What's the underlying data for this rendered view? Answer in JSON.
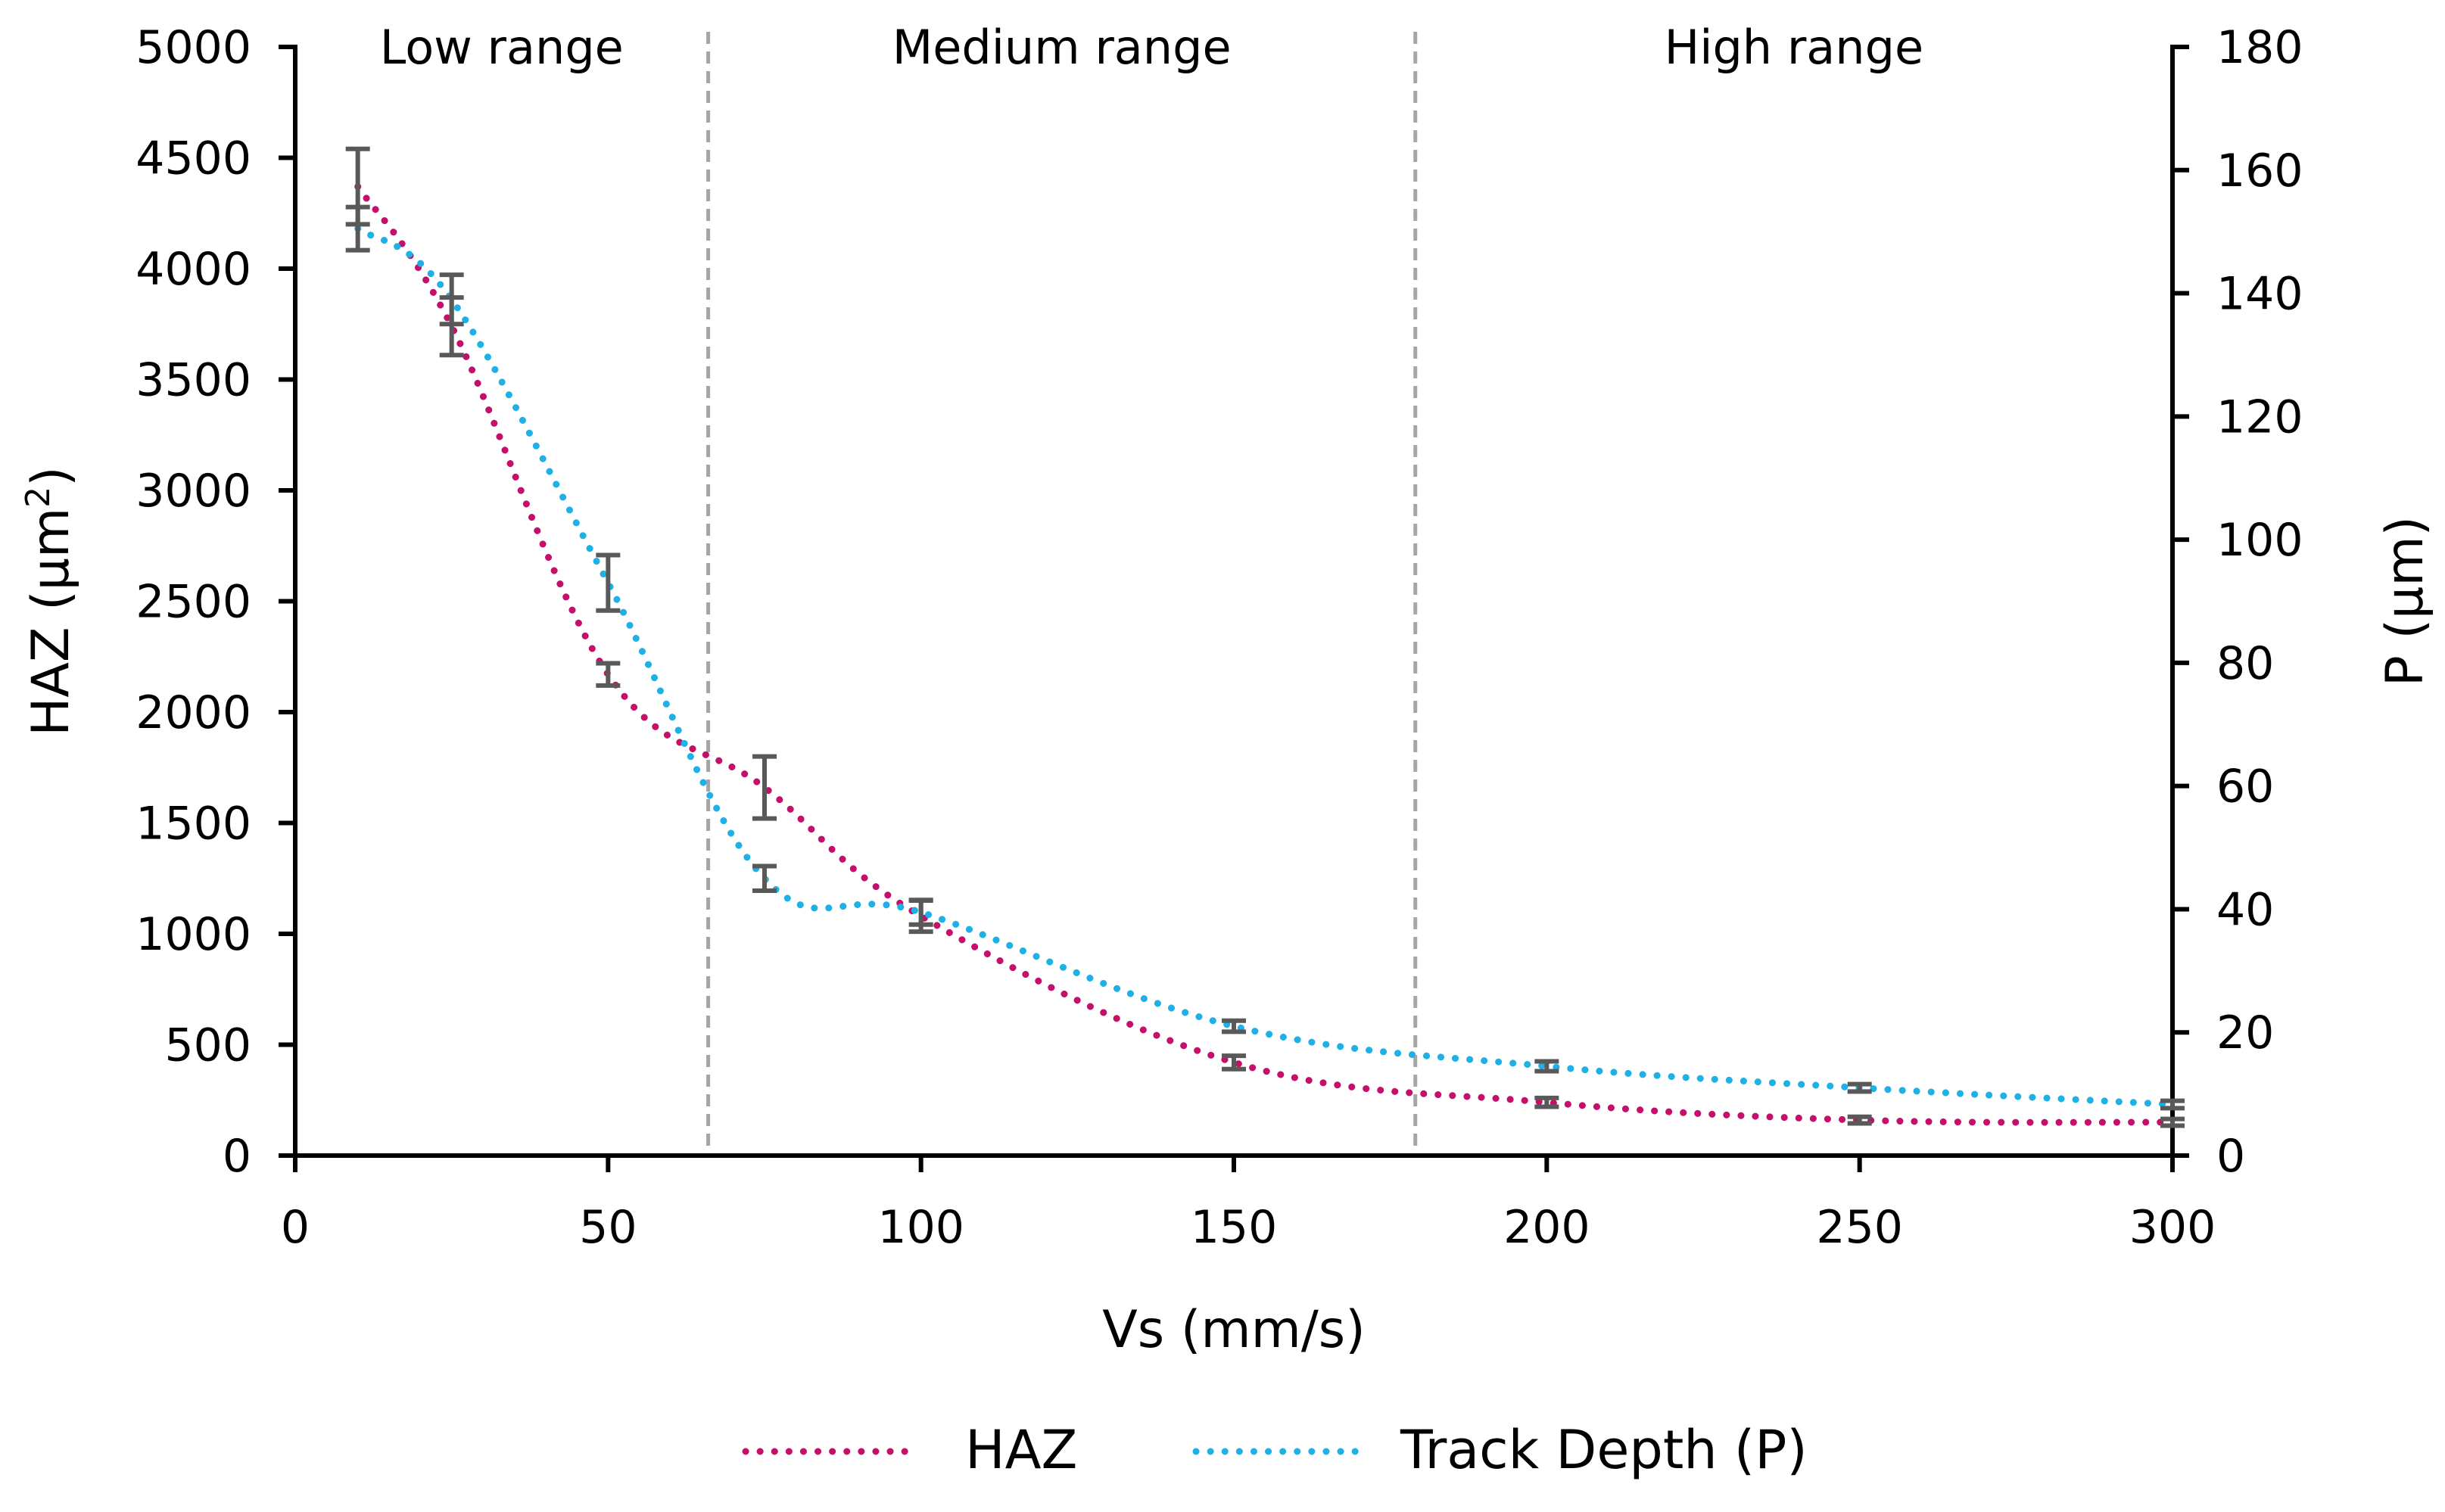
{
  "chart_data": {
    "type": "line",
    "xlabel": "Vs (mm/s)",
    "ylabel_left": "HAZ (µm",
    "ylabel_left_sup": "2",
    "ylabel_left_close": ")",
    "ylabel_right": "P (µm)",
    "xlim": [
      0,
      300
    ],
    "ylim_left": [
      0,
      5000
    ],
    "ylim_right": [
      0,
      180
    ],
    "x_ticks": [
      0,
      50,
      100,
      150,
      200,
      250,
      300
    ],
    "y_left_ticks": [
      0,
      500,
      1000,
      1500,
      2000,
      2500,
      3000,
      3500,
      4000,
      4500,
      5000
    ],
    "y_right_ticks": [
      0,
      20,
      40,
      60,
      80,
      100,
      120,
      140,
      160,
      180
    ],
    "grid": false,
    "legend_position": "bottom",
    "series": [
      {
        "name": "HAZ",
        "axis": "left",
        "color": "#c4106b",
        "line_style": "dotted",
        "x": [
          10,
          25,
          50,
          75,
          100,
          150,
          200,
          250,
          300
        ],
        "y": [
          4370,
          3740,
          2170,
          1660,
          1080,
          420,
          240,
          160,
          150
        ],
        "error": [
          170,
          130,
          50,
          140,
          70,
          30,
          20,
          15,
          15
        ]
      },
      {
        "name": "Track Depth (P)",
        "axis": "right",
        "color": "#1fb1e6",
        "line_style": "dotted",
        "x": [
          10,
          25,
          50,
          75,
          100,
          150,
          200,
          250,
          300
        ],
        "y": [
          150.5,
          139,
          93,
          45,
          39.5,
          21,
          14.5,
          11,
          8.3
        ],
        "error": [
          3.5,
          4,
          4.5,
          2,
          2,
          0.9,
          0.8,
          0.6,
          0.6
        ]
      }
    ],
    "regions": [
      {
        "label": "Low range",
        "from": 0,
        "to": 66
      },
      {
        "label": "Medium range",
        "from": 66,
        "to": 179
      },
      {
        "label": "High range",
        "from": 179,
        "to": 300
      }
    ],
    "region_dividers": [
      66,
      179
    ]
  }
}
